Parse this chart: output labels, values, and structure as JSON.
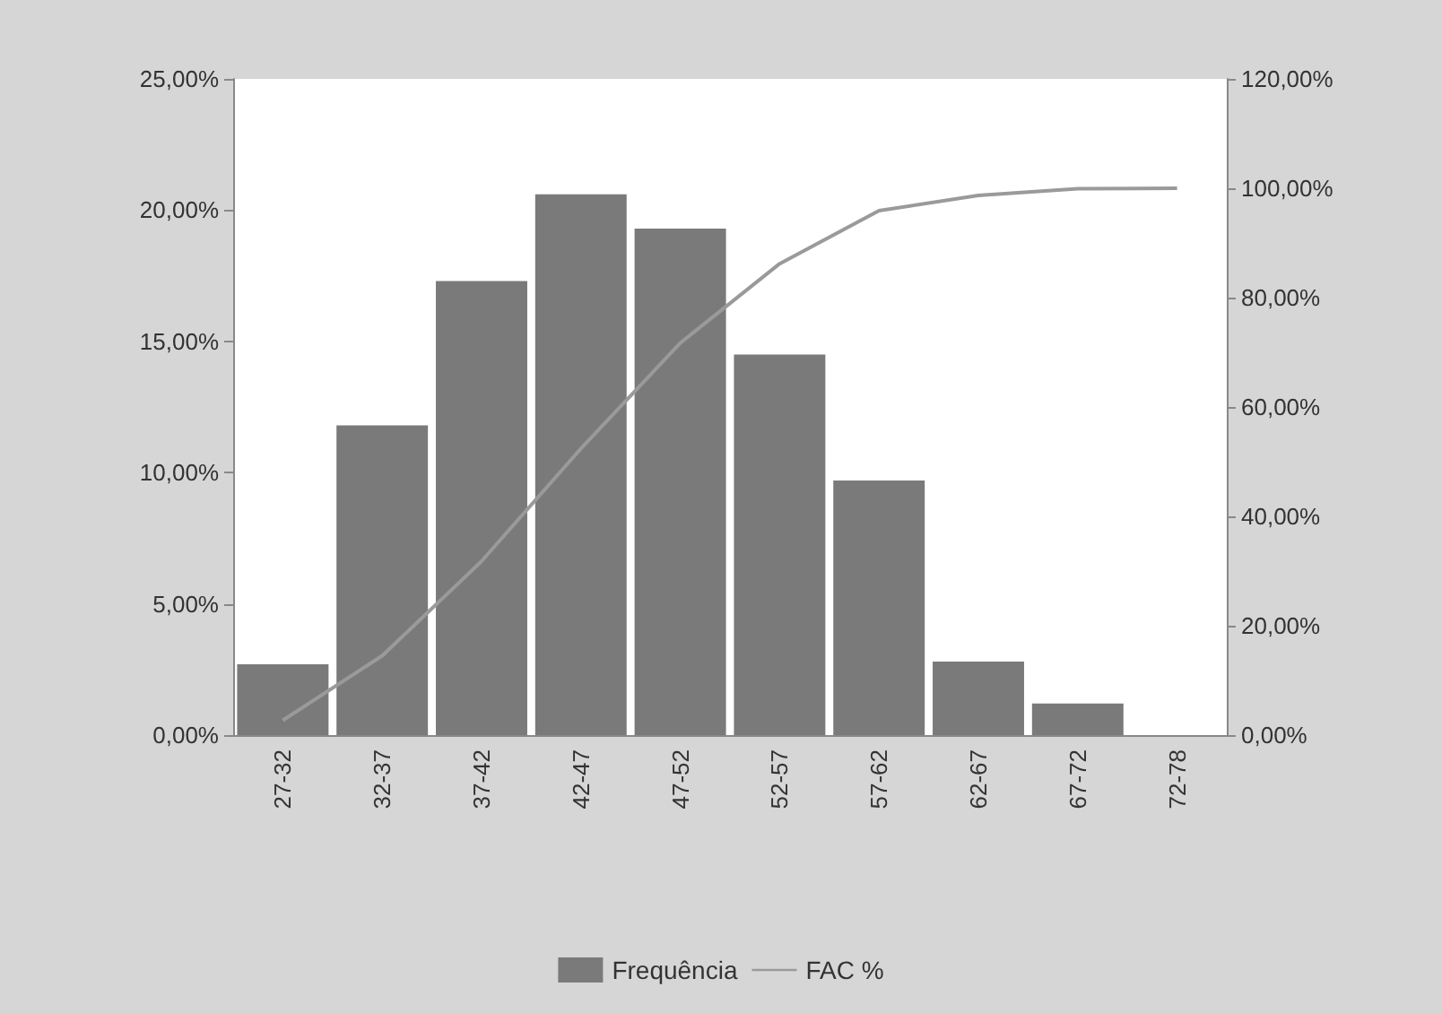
{
  "chart_data": {
    "type": "bar",
    "categories": [
      "27-32",
      "32-37",
      "37-42",
      "42-47",
      "47-52",
      "52-57",
      "57-62",
      "62-67",
      "67-72",
      "72-78"
    ],
    "series": [
      {
        "name": "Frequência",
        "color": "#7a7a7a",
        "values": [
          2.7,
          11.8,
          17.3,
          20.6,
          19.3,
          14.5,
          9.7,
          2.8,
          1.2,
          0
        ]
      },
      {
        "name": "FAC %",
        "type": "line",
        "axis": "y2",
        "color": "#9a9a9a",
        "values": [
          2.7,
          14.5,
          31.8,
          52.4,
          71.7,
          86.2,
          95.9,
          98.7,
          99.9,
          100
        ]
      }
    ],
    "ylim": [
      0,
      25
    ],
    "yticks": [
      {
        "value": 0,
        "label": "0,00%"
      },
      {
        "value": 5,
        "label": "5,00%"
      },
      {
        "value": 10,
        "label": "10,00%"
      },
      {
        "value": 15,
        "label": "15,00%"
      },
      {
        "value": 20,
        "label": "20,00%"
      },
      {
        "value": 25,
        "label": "25,00%"
      }
    ],
    "y2lim": [
      0,
      120
    ],
    "y2ticks": [
      {
        "value": 0,
        "label": "0,00%"
      },
      {
        "value": 20,
        "label": "20,00%"
      },
      {
        "value": 40,
        "label": "40,00%"
      },
      {
        "value": 60,
        "label": "60,00%"
      },
      {
        "value": 80,
        "label": "80,00%"
      },
      {
        "value": 100,
        "label": "100,00%"
      },
      {
        "value": 120,
        "label": "120,00%"
      }
    ],
    "grid": false,
    "legend": "bottom",
    "marker": "none"
  }
}
